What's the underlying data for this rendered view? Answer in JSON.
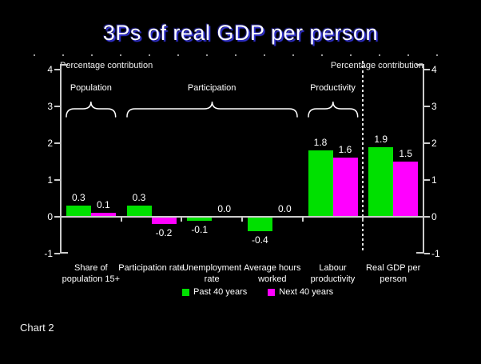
{
  "slide": {
    "title": "3Ps of real GDP per person",
    "footer": "Chart 2"
  },
  "axis": {
    "left_unit_label": "Percentage contribution",
    "right_unit_label": "Percentage contribution",
    "tick_values": [
      4,
      3,
      2,
      1,
      0,
      -1
    ]
  },
  "group_braces": [
    {
      "label": "Population",
      "from_category": 0,
      "to_category": 0
    },
    {
      "label": "Participation",
      "from_category": 1,
      "to_category": 3
    },
    {
      "label": "Productivity",
      "from_category": 4,
      "to_category": 4
    }
  ],
  "separator": {
    "before_category": 5
  },
  "legend": {
    "items": [
      {
        "label": "Past 40 years",
        "color": "#00e000"
      },
      {
        "label": "Next 40 years",
        "color": "#ff00ff"
      }
    ]
  },
  "chart_data": {
    "type": "bar",
    "title": "3Ps of real GDP per person",
    "ylabel": "Percentage contribution",
    "ylim": [
      -1,
      4
    ],
    "grid": false,
    "legend_position": "bottom",
    "value_labels_shown": true,
    "categories": [
      "Share of population 15+",
      "Participation rate",
      "Unemployment rate",
      "Average hours worked",
      "Labour productivity",
      "Real GDP per person"
    ],
    "category_label_lines": [
      [
        "Share of",
        "population 15+"
      ],
      [
        "Participation rate"
      ],
      [
        "Unemployment",
        "rate"
      ],
      [
        "Average hours",
        "worked"
      ],
      [
        "Labour",
        "productivity"
      ],
      [
        "Real GDP per",
        "person"
      ]
    ],
    "series": [
      {
        "name": "Past 40 years",
        "color": "#00e000",
        "values": [
          0.3,
          0.3,
          -0.1,
          -0.4,
          1.8,
          1.9
        ]
      },
      {
        "name": "Next 40 years",
        "color": "#ff00ff",
        "values": [
          0.1,
          -0.2,
          0.0,
          0.0,
          1.6,
          1.5
        ]
      }
    ]
  }
}
